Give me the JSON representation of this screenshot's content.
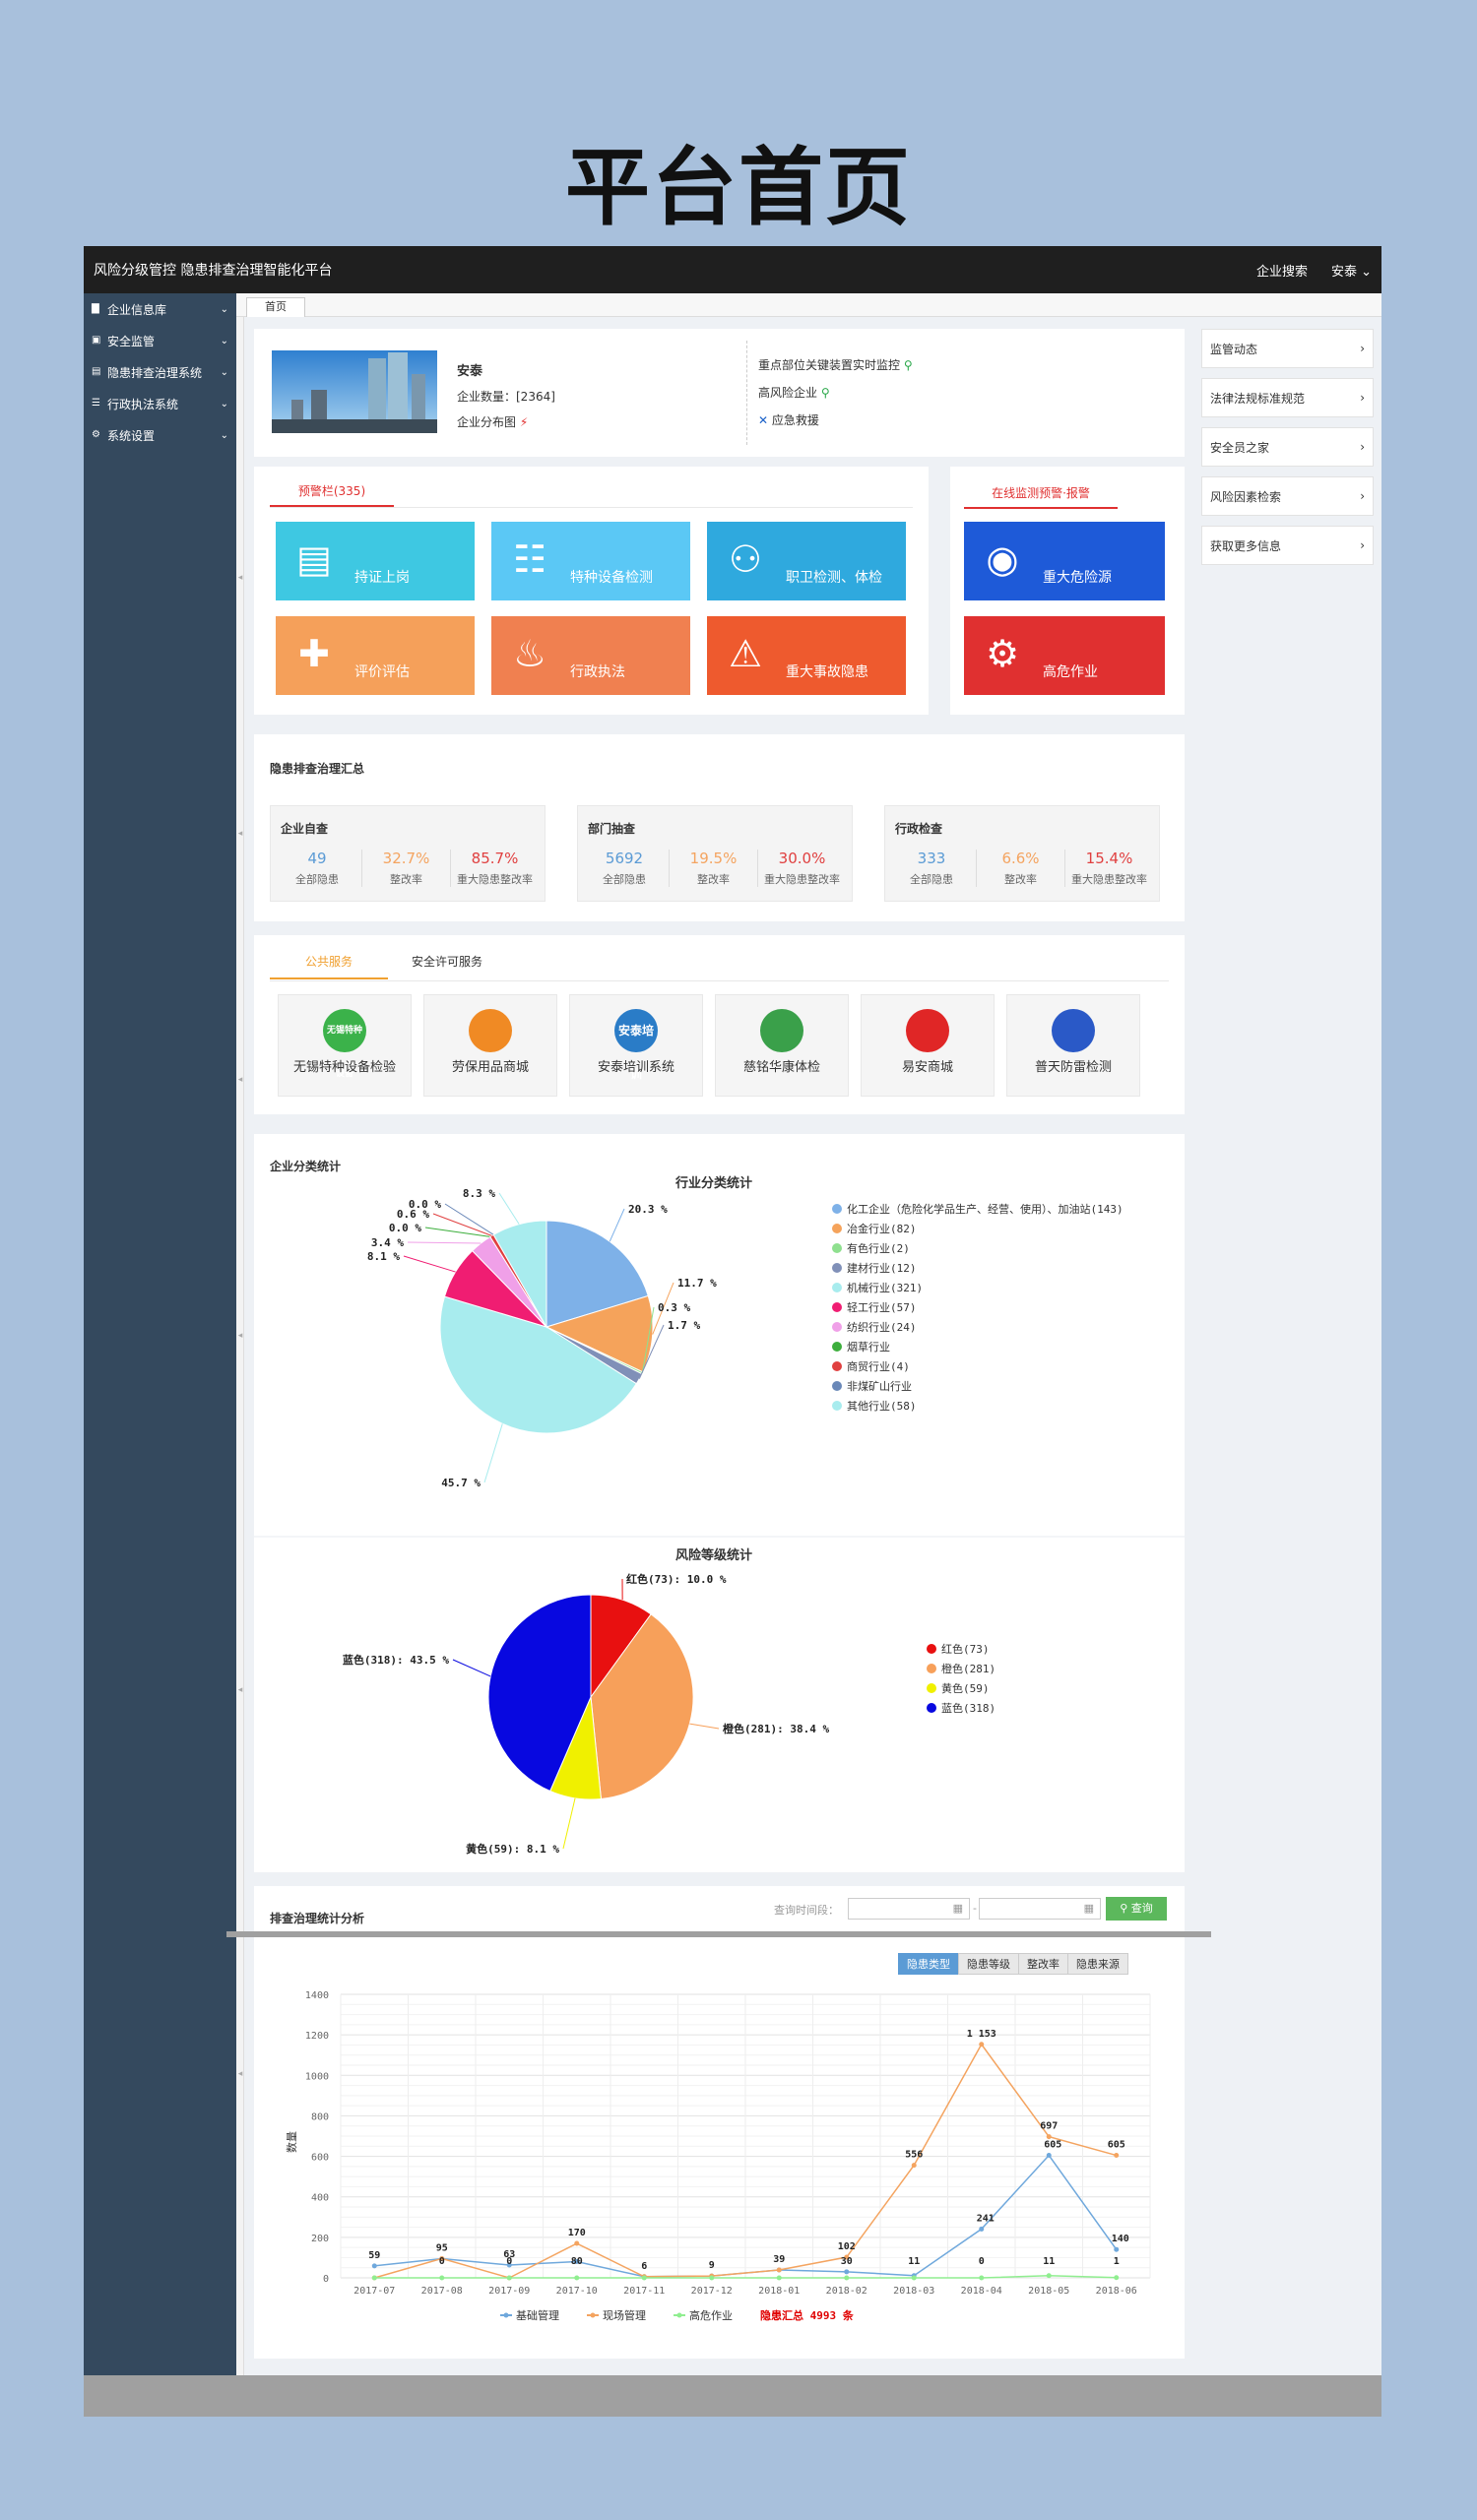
{
  "page_title": "平台首页",
  "topbar": {
    "brand": "风险分级管控 隐患排查治理智能化平台",
    "search": "企业搜索",
    "user": "安泰"
  },
  "sidebar": [
    {
      "label": "企业信息库",
      "icon": "building-icon"
    },
    {
      "label": "安全监管",
      "icon": "folder-icon"
    },
    {
      "label": "隐患排查治理系统",
      "icon": "doc-icon"
    },
    {
      "label": "行政执法系统",
      "icon": "list-icon"
    },
    {
      "label": "系统设置",
      "icon": "gear-icon"
    }
  ],
  "tab": "首页",
  "profile": {
    "name": "安泰",
    "count_label": "企业数量：[2364]",
    "map_label": "企业分布图",
    "links": [
      "重点部位关键装置实时监控",
      "高风险企业",
      "应急救援"
    ]
  },
  "right_links": [
    "监管动态",
    "法律法规标准规范",
    "安全员之家",
    "风险因素检索",
    "获取更多信息"
  ],
  "warning": {
    "title": "预警栏(335)",
    "tiles": [
      {
        "label": "持证上岗",
        "color": "#3ec8e2",
        "icon": "id-card-icon"
      },
      {
        "label": "特种设备检测",
        "color": "#5bc8f5",
        "icon": "equipment-icon"
      },
      {
        "label": "职卫检测、体检",
        "color": "#2fa9de",
        "icon": "nodes-icon"
      },
      {
        "label": "评价评估",
        "color": "#f5a05a",
        "icon": "plus-chat-icon"
      },
      {
        "label": "行政执法",
        "color": "#f08050",
        "icon": "extinguisher-icon"
      },
      {
        "label": "重大事故隐患",
        "color": "#ee5a2e",
        "icon": "alert-icon"
      }
    ]
  },
  "monitor": {
    "title": "在线监测预警·报警",
    "tiles": [
      {
        "label": "重大危险源",
        "color": "#1e5ad8",
        "icon": "target-icon"
      },
      {
        "label": "高危作业",
        "color": "#e03030",
        "icon": "machine-icon"
      }
    ]
  },
  "summary": {
    "title": "隐患排查治理汇总",
    "boxes": [
      {
        "title": "企业自查",
        "vals": [
          "49",
          "32.7%",
          "85.7%"
        ],
        "labels": [
          "全部隐患",
          "整改率",
          "重大隐患整改率"
        ]
      },
      {
        "title": "部门抽查",
        "vals": [
          "5692",
          "19.5%",
          "30.0%"
        ],
        "labels": [
          "全部隐患",
          "整改率",
          "重大隐患整改率"
        ]
      },
      {
        "title": "行政检查",
        "vals": [
          "333",
          "6.6%",
          "15.4%"
        ],
        "labels": [
          "全部隐患",
          "整改率",
          "重大隐患整改率"
        ]
      }
    ]
  },
  "services": {
    "tabs": [
      "公共服务",
      "安全许可服务"
    ],
    "items": [
      {
        "label": "无锡特种设备检验",
        "badge": "无锡特种设备",
        "color": "#3bb24a"
      },
      {
        "label": "劳保用品商城",
        "badge": "",
        "color": "#f08a24"
      },
      {
        "label": "安泰培训系统",
        "badge": "安泰培训",
        "color": "#2a7cc7"
      },
      {
        "label": "慈铭华康体检",
        "badge": "",
        "color": "#3aa04a"
      },
      {
        "label": "易安商城",
        "badge": "",
        "color": "#e02626"
      },
      {
        "label": "普天防雷检测",
        "badge": "",
        "color": "#2a59c7"
      }
    ]
  },
  "enterprise_stats": {
    "title": "企业分类统计"
  },
  "trend": {
    "title": "排查治理统计分析",
    "query_label": "查询时间段：",
    "query_btn": "查询",
    "toggles": [
      "隐患类型",
      "隐患等级",
      "整改率",
      "隐患来源"
    ],
    "ylabel": "数量",
    "total_label": "隐患汇总 4993 条"
  },
  "chart_data": [
    {
      "type": "pie",
      "title": "行业分类统计",
      "categories": [
        "化工企业（危险化学品生产、经营、使用）、加油站(143)",
        "冶金行业(82)",
        "有色行业(2)",
        "建材行业(12)",
        "机械行业(321)",
        "轻工行业(57)",
        "纺织行业(24)",
        "烟草行业",
        "商贸行业(4)",
        "非煤矿山行业",
        "其他行业(58)"
      ],
      "values": [
        20.3,
        11.7,
        0.3,
        1.7,
        45.7,
        8.1,
        3.4,
        0.0,
        0.6,
        0.0,
        8.3
      ],
      "colors": [
        "#7eb1e8",
        "#f5a35b",
        "#8fe08f",
        "#8090b8",
        "#a8ecee",
        "#f01d72",
        "#f0a0e8",
        "#3cae3c",
        "#e04040",
        "#6a88b8",
        "#a8ecee"
      ],
      "labels": [
        "20.3 %",
        "11.7 %",
        "0.3 %",
        "1.7 %",
        "45.7 %",
        "8.1 %",
        "3.4 %",
        "0.0 %",
        "0.6 %",
        "0.0 %",
        "8.3 %"
      ]
    },
    {
      "type": "pie",
      "title": "风险等级统计",
      "categories": [
        "红色(73)",
        "橙色(281)",
        "黄色(59)",
        "蓝色(318)"
      ],
      "values": [
        10.0,
        38.4,
        8.1,
        43.5
      ],
      "colors": [
        "#e81010",
        "#f7a05a",
        "#f0f000",
        "#0808e0"
      ],
      "labels": [
        "红色(73): 10.0 %",
        "橙色(281): 38.4 %",
        "黄色(59): 8.1 %",
        "蓝色(318): 43.5 %"
      ]
    },
    {
      "type": "line",
      "categories": [
        "2017-07",
        "2017-08",
        "2017-09",
        "2017-10",
        "2017-11",
        "2017-12",
        "2018-01",
        "2018-02",
        "2018-03",
        "2018-04",
        "2018-05",
        "2018-06"
      ],
      "ylim": [
        0,
        1400
      ],
      "yticks": [
        0,
        200,
        400,
        600,
        800,
        1000,
        1200,
        1400
      ],
      "ylabel": "数量",
      "series": [
        {
          "name": "基础管理",
          "color": "#6fa8dc",
          "values": [
            59,
            95,
            63,
            80,
            6,
            9,
            39,
            30,
            11,
            241,
            605,
            140
          ]
        },
        {
          "name": "现场管理",
          "color": "#f4a460",
          "values": [
            0,
            95,
            0,
            170,
            6,
            9,
            39,
            102,
            556,
            1153,
            697,
            605
          ]
        },
        {
          "name": "高危作业",
          "color": "#90ee90",
          "values": [
            0,
            0,
            0,
            0,
            0,
            0,
            0,
            0,
            0,
            0,
            11,
            1
          ]
        }
      ],
      "point_labels": [
        "59",
        "95",
        "63",
        "170",
        "6",
        "9",
        "39",
        "102",
        "556",
        "1 153",
        "697",
        "605"
      ],
      "point_labels_low": [
        "",
        "0",
        "0",
        "80",
        "",
        "",
        "",
        "30",
        "11",
        "0",
        "11",
        "1"
      ],
      "point_labels_blue": [
        "",
        "",
        "",
        "",
        "",
        "",
        "",
        "",
        "",
        "241",
        "605",
        "140"
      ]
    }
  ]
}
